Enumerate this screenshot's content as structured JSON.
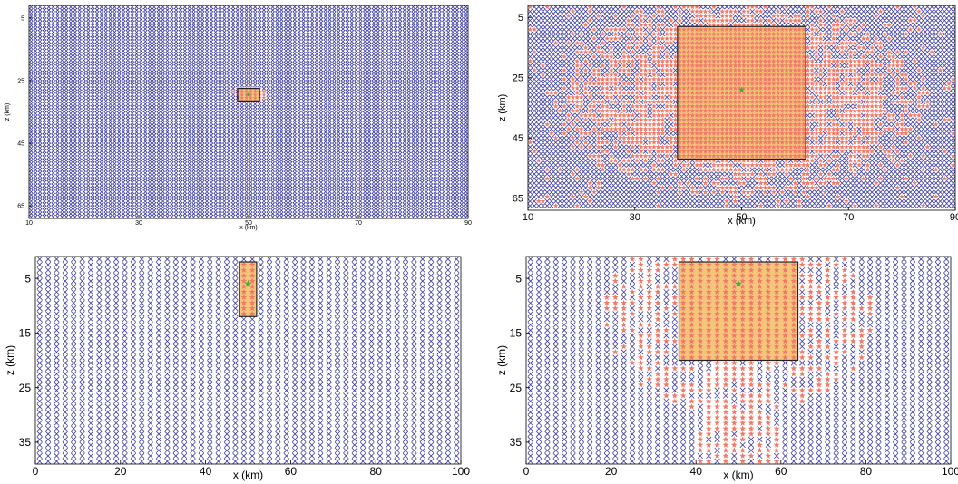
{
  "colors": {
    "grid_marker": "#3a3aa0",
    "flagged_marker": "#f07a6a",
    "box_fill": "#f5c57a",
    "box_stroke": "#222222",
    "source": "#3cb043"
  },
  "chart_data": [
    {
      "type": "scatter",
      "panel": "top-left",
      "xlabel": "x (km)",
      "ylabel": "z (km)",
      "xlim": [
        10,
        90
      ],
      "ylim": [
        1,
        69
      ],
      "y_inverted": true,
      "x_ticks": [
        "10",
        "30",
        "50",
        "70",
        "90"
      ],
      "y_ticks": [
        "5",
        "25",
        "45",
        "65"
      ],
      "grid_spacing": {
        "x": 0.8,
        "z": 1.0
      },
      "box": {
        "x": [
          48,
          52
        ],
        "z": [
          27.5,
          31.5
        ]
      },
      "source_point": {
        "x": 50,
        "z": 29.5
      },
      "flagged_region": "inside box"
    },
    {
      "type": "scatter",
      "panel": "top-right",
      "xlabel": "x (km)",
      "ylabel": "z (km)",
      "xlim": [
        10,
        90
      ],
      "ylim": [
        1,
        69
      ],
      "y_inverted": true,
      "x_ticks": [
        "10",
        "30",
        "50",
        "70",
        "90"
      ],
      "y_ticks": [
        "5",
        "25",
        "45",
        "65"
      ],
      "grid_spacing": {
        "x": 0.8,
        "z": 1.5
      },
      "box": {
        "x": [
          38,
          62
        ],
        "z": [
          8,
          52
        ]
      },
      "source_point": {
        "x": 50,
        "z": 29
      },
      "flagged_region": "box and broad surrounding area"
    },
    {
      "type": "scatter",
      "panel": "bottom-left",
      "xlabel": "x (km)",
      "ylabel": "z (km)",
      "xlim": [
        0,
        100
      ],
      "ylim": [
        1,
        39
      ],
      "y_inverted": true,
      "x_ticks": [
        "0",
        "20",
        "40",
        "60",
        "80",
        "100"
      ],
      "y_ticks": [
        "5",
        "15",
        "25",
        "35"
      ],
      "grid_spacing": {
        "x": 2,
        "z": 1
      },
      "box": {
        "x": [
          48,
          52
        ],
        "z": [
          2,
          12
        ]
      },
      "source_point": {
        "x": 50,
        "z": 6
      },
      "flagged_region": "inside box"
    },
    {
      "type": "scatter",
      "panel": "bottom-right",
      "xlabel": "x (km)",
      "ylabel": "z (km)",
      "xlim": [
        0,
        100
      ],
      "ylim": [
        1,
        39
      ],
      "y_inverted": true,
      "x_ticks": [
        "0",
        "20",
        "40",
        "60",
        "80",
        "100"
      ],
      "y_ticks": [
        "5",
        "15",
        "25",
        "35"
      ],
      "grid_spacing": {
        "x": 2,
        "z": 1
      },
      "box": {
        "x": [
          36,
          64
        ],
        "z": [
          2,
          20
        ]
      },
      "source_point": {
        "x": 50,
        "z": 6
      },
      "flagged_region": "box and surrounding cone"
    }
  ]
}
